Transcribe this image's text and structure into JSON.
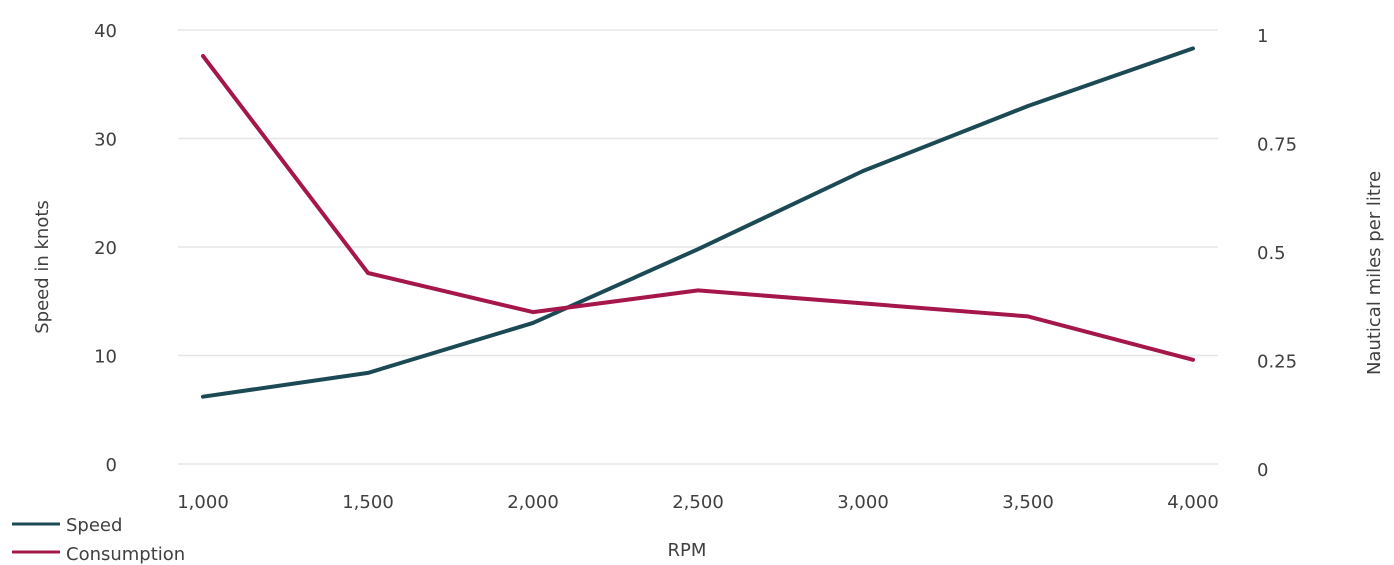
{
  "chart_data": {
    "type": "line",
    "x": [
      1000,
      1500,
      2000,
      2500,
      3000,
      3500,
      4000
    ],
    "x_tick_labels": [
      "1,000",
      "1,500",
      "2,000",
      "2,500",
      "3,000",
      "3,500",
      "4,000"
    ],
    "xlabel": "RPM",
    "y_left_label": "Speed in knots",
    "y_right_label": "Nautical miles per litre",
    "y_left_lim": [
      0,
      40
    ],
    "y_right_lim": [
      0,
      1
    ],
    "y_left_ticks": [
      "0",
      "10",
      "20",
      "30",
      "40"
    ],
    "y_right_ticks": [
      "0",
      "0.25",
      "0.5",
      "0.75",
      "1"
    ],
    "grid": true,
    "legend_position": "bottom-left",
    "series": [
      {
        "name": "Speed",
        "axis": "left",
        "color": "#1b4a55",
        "values": [
          6.2,
          8.4,
          13.0,
          19.8,
          27.0,
          33.0,
          38.3
        ]
      },
      {
        "name": "Consumption",
        "axis": "right",
        "color": "#a5174b",
        "values": [
          0.94,
          0.44,
          0.35,
          0.4,
          0.37,
          0.34,
          0.24
        ]
      }
    ]
  }
}
